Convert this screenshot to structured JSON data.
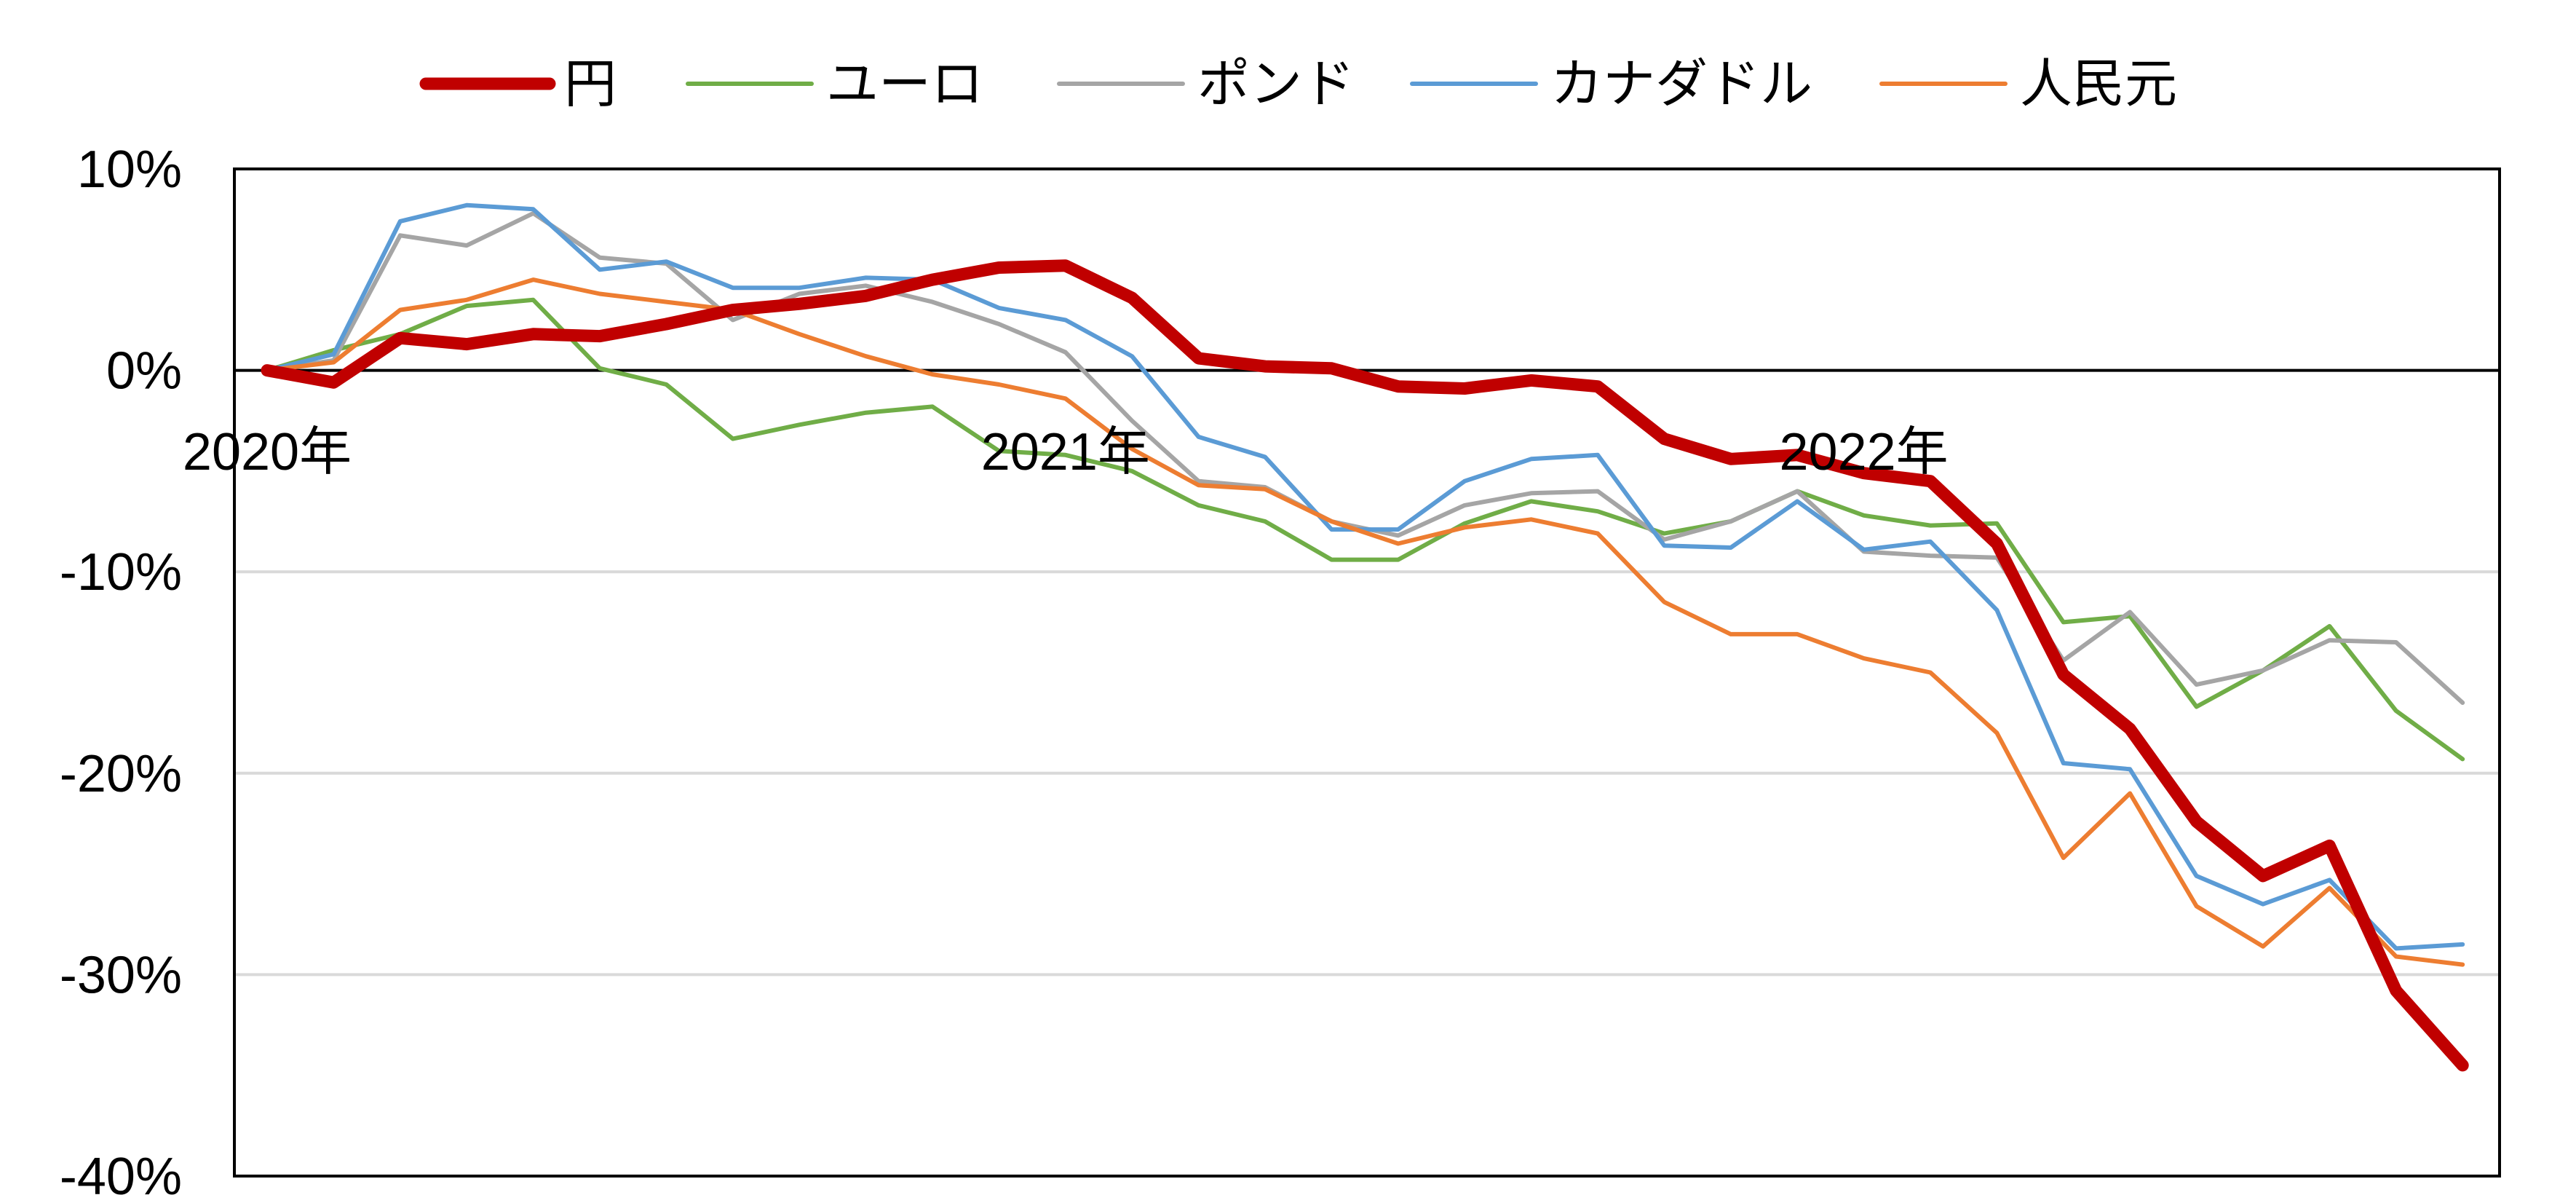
{
  "chart_data": {
    "type": "line",
    "title": "",
    "xlabel": "",
    "ylabel": "",
    "ylim": [
      -40,
      10
    ],
    "y_ticks": [
      "10%",
      "0%",
      "-10%",
      "-20%",
      "-30%",
      "-40%"
    ],
    "y_tick_values": [
      10,
      0,
      -10,
      -20,
      -30,
      -40
    ],
    "x_ticks": [
      "2020年",
      "2021年",
      "2022年"
    ],
    "x_tick_index": [
      0,
      12,
      24
    ],
    "gridlines": "horizontal",
    "zero_line": true,
    "legend_position": "top",
    "series": [
      {
        "name": "ユーロ",
        "color": "#70AD47",
        "values": [
          0,
          1.0,
          1.8,
          3.2,
          3.5,
          0.1,
          -0.7,
          -3.4,
          -2.7,
          -2.1,
          -1.8,
          -4.0,
          -4.2,
          -5.0,
          -6.7,
          -7.5,
          -9.4,
          -9.4,
          -7.6,
          -6.5,
          -7.0,
          -8.1,
          -7.5,
          -6.0,
          -7.2,
          -7.7,
          -7.6,
          -12.5,
          -12.2,
          -16.7,
          -14.9,
          -12.7,
          -16.9,
          -19.3
        ]
      },
      {
        "name": "ポンド",
        "color": "#A5A5A5",
        "values": [
          0,
          0.5,
          6.7,
          6.2,
          7.8,
          5.6,
          5.3,
          2.5,
          3.8,
          4.2,
          3.4,
          2.3,
          0.9,
          -2.5,
          -5.5,
          -5.8,
          -7.5,
          -8.2,
          -6.7,
          -6.1,
          -6.0,
          -8.4,
          -7.5,
          -6.0,
          -9.0,
          -9.2,
          -9.3,
          -14.4,
          -12.0,
          -15.6,
          -14.9,
          -13.4,
          -13.5,
          -16.5
        ]
      },
      {
        "name": "カナダドル",
        "color": "#5B9BD5",
        "values": [
          0,
          0.8,
          7.4,
          8.2,
          8.0,
          5.0,
          5.4,
          4.1,
          4.1,
          4.6,
          4.5,
          3.1,
          2.5,
          0.7,
          -3.3,
          -4.3,
          -7.9,
          -7.9,
          -5.5,
          -4.4,
          -4.2,
          -8.7,
          -8.8,
          -6.5,
          -8.9,
          -8.5,
          -11.9,
          -19.5,
          -19.8,
          -25.1,
          -26.5,
          -25.3,
          -28.7,
          -28.5
        ]
      },
      {
        "name": "人民元",
        "color": "#ED7D31",
        "values": [
          0,
          0.4,
          3.0,
          3.5,
          4.5,
          3.8,
          3.4,
          3.0,
          1.8,
          0.7,
          -0.2,
          -0.7,
          -1.4,
          -3.9,
          -5.7,
          -5.9,
          -7.5,
          -8.6,
          -7.8,
          -7.4,
          -8.1,
          -11.5,
          -13.1,
          -13.1,
          -14.3,
          -15.0,
          -18.0,
          -24.2,
          -21.0,
          -26.6,
          -28.6,
          -25.7,
          -29.1,
          -29.5
        ]
      },
      {
        "name": "円",
        "color": "#C00000",
        "values": [
          0,
          -0.6,
          1.6,
          1.3,
          1.8,
          1.7,
          2.3,
          3.0,
          3.3,
          3.7,
          4.5,
          5.1,
          5.2,
          3.6,
          0.6,
          0.2,
          0.1,
          -0.8,
          -0.9,
          -0.5,
          -0.8,
          -3.4,
          -4.4,
          -4.2,
          -5.1,
          -5.5,
          -8.6,
          -15.1,
          -17.8,
          -22.4,
          -25.1,
          -23.6,
          -30.8,
          -34.5
        ]
      }
    ],
    "legend_order": [
      "円",
      "ユーロ",
      "ポンド",
      "カナダドル",
      "人民元"
    ]
  }
}
